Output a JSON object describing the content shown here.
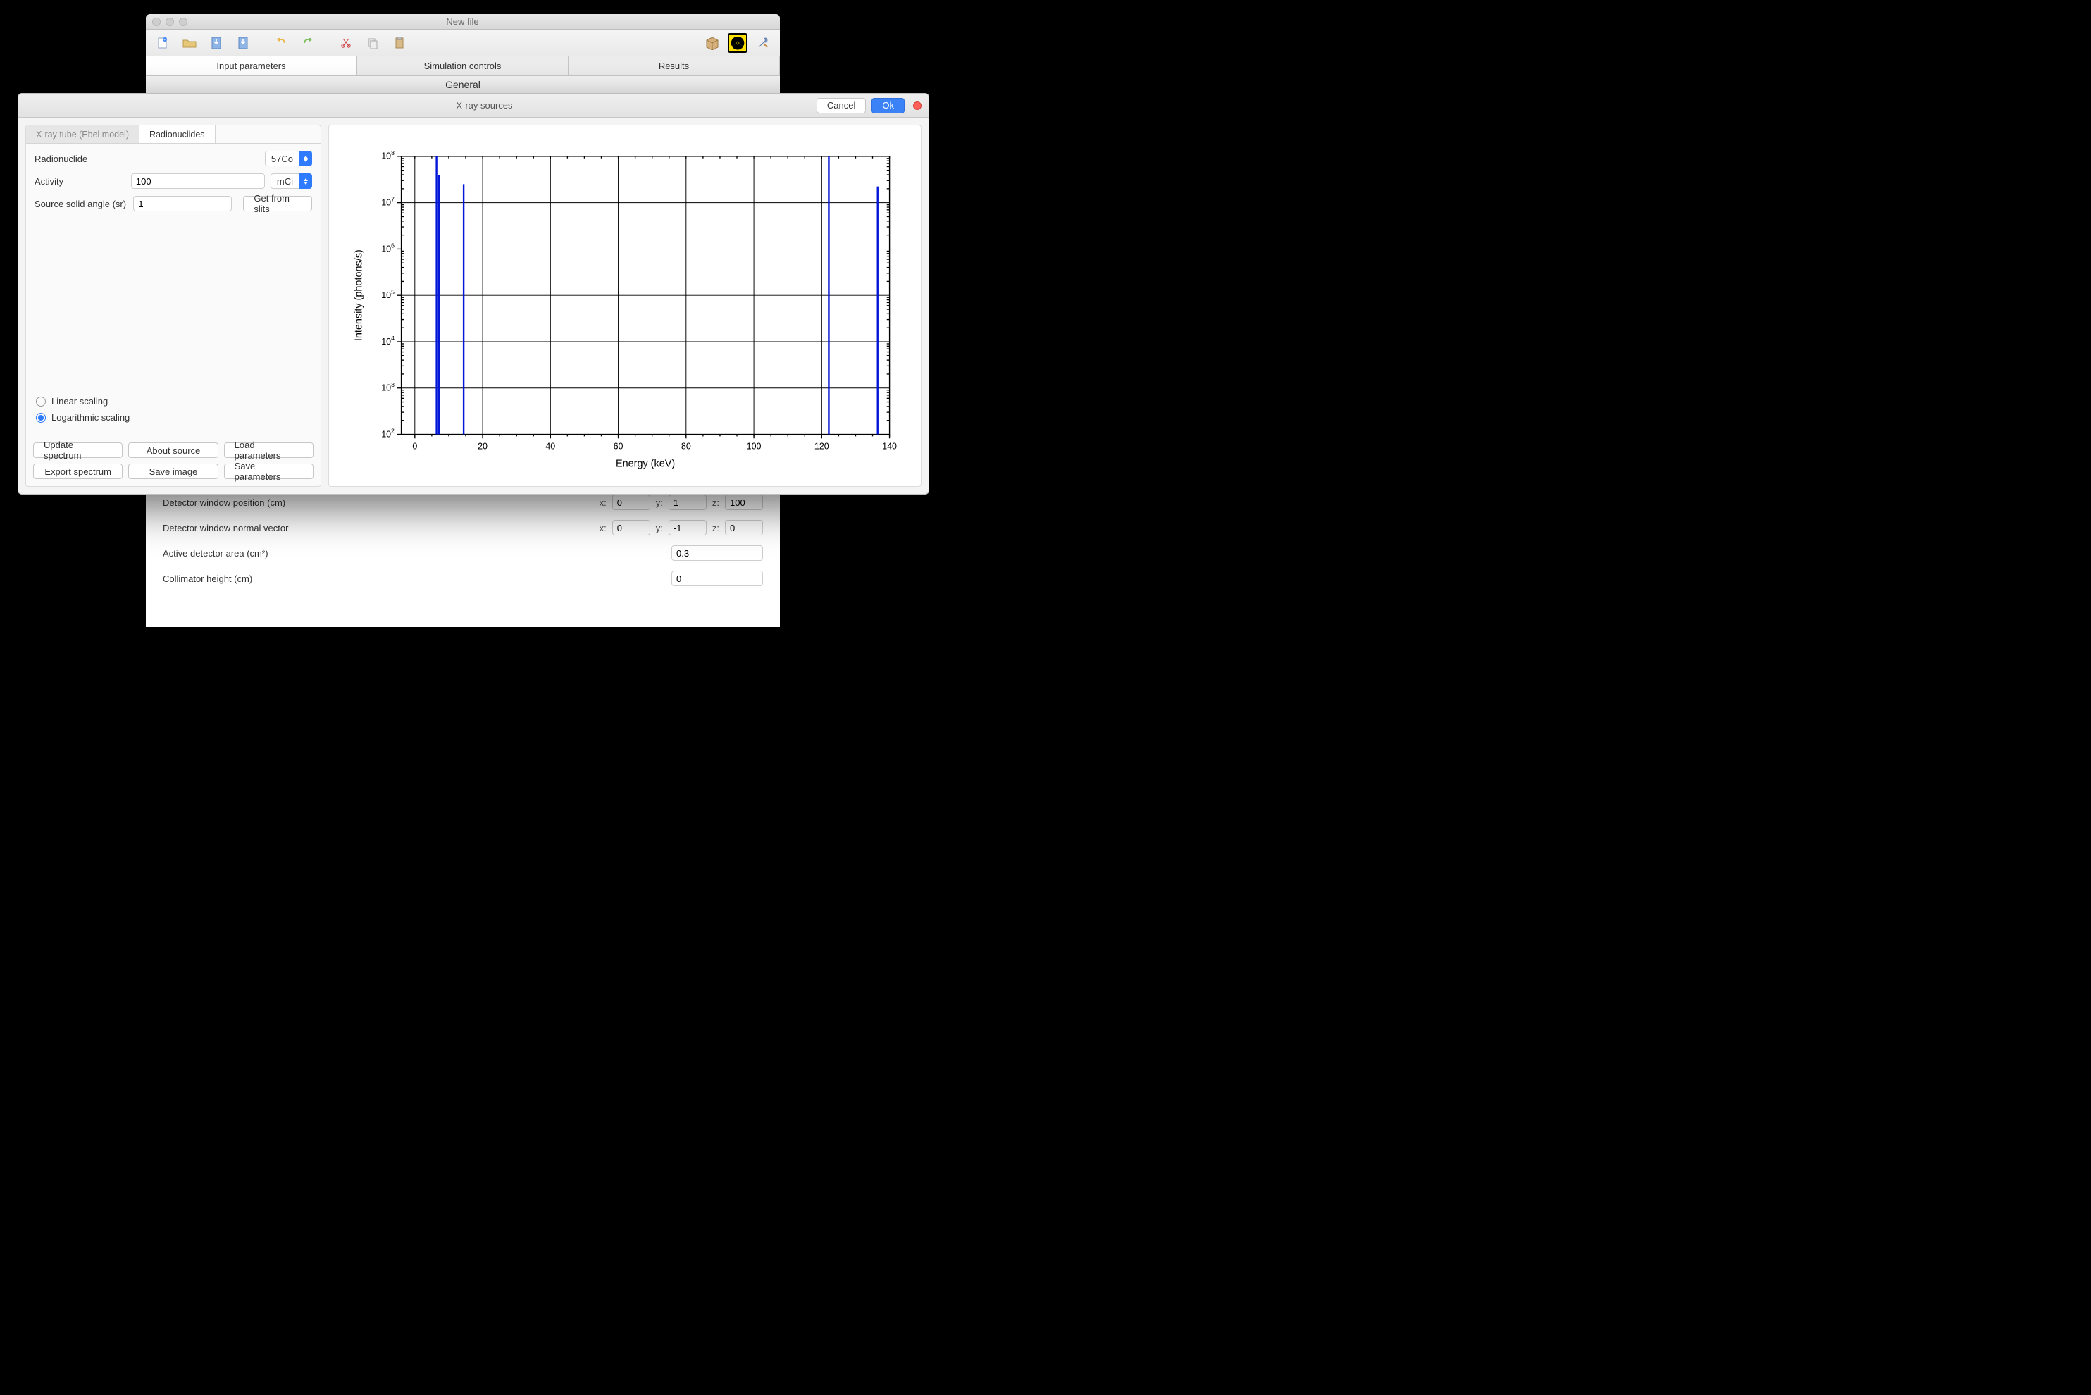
{
  "back_window": {
    "title": "New file",
    "toolbar_icons": [
      "new-doc",
      "open-folder",
      "download",
      "download-alt",
      "undo",
      "redo",
      "cut",
      "copy",
      "paste"
    ],
    "right_icons": [
      "box-icon",
      "radiation-icon",
      "tools-icon"
    ],
    "main_tabs": [
      "Input parameters",
      "Simulation controls",
      "Results"
    ],
    "active_main_tab": 0,
    "section": "General",
    "rows": {
      "det_pos": {
        "label": "Detector window position (cm)",
        "x": "0",
        "y": "1",
        "z": "100"
      },
      "det_norm": {
        "label": "Detector window normal vector",
        "x": "0",
        "y": "-1",
        "z": "0"
      },
      "det_area": {
        "label": "Active detector area (cm²)",
        "value": "0.3"
      },
      "coll_h": {
        "label": "Collimator height (cm)",
        "value": "0"
      }
    }
  },
  "modal": {
    "title": "X-ray sources",
    "cancel": "Cancel",
    "ok": "Ok",
    "subtabs": [
      "X-ray tube (Ebel model)",
      "Radionuclides"
    ],
    "active_subtab": 1,
    "form": {
      "radionuclide_label": "Radionuclide",
      "radionuclide_value": "57Co",
      "activity_label": "Activity",
      "activity_value": "100",
      "activity_unit": "mCi",
      "solid_label": "Source solid angle (sr)",
      "solid_value": "1",
      "get_slits": "Get from slits"
    },
    "scaling": {
      "linear": "Linear scaling",
      "log": "Logarithmic scaling",
      "selected": "log"
    },
    "buttons": [
      "Update spectrum",
      "About source",
      "Load parameters",
      "Export spectrum",
      "Save image",
      "Save parameters"
    ]
  },
  "chart": {
    "type": "line-spectrum",
    "xlabel": "Energy (keV)",
    "ylabel": "Intensity (photons/s)",
    "xlim": [
      0,
      140
    ],
    "xtick_step": 20,
    "ylog": true,
    "y_exp_min": 2,
    "y_exp_max": 8,
    "line_color": "#0016d8",
    "axis_color": "#000000",
    "background": "#ffffff",
    "x_extra_left": 4,
    "peaks": [
      {
        "x": 6.4,
        "y_exp": 8.15
      },
      {
        "x": 7.1,
        "y_exp": 7.6
      },
      {
        "x": 14.4,
        "y_exp": 7.4
      },
      {
        "x": 122.1,
        "y_exp": 8.2
      },
      {
        "x": 136.5,
        "y_exp": 7.35
      }
    ]
  }
}
